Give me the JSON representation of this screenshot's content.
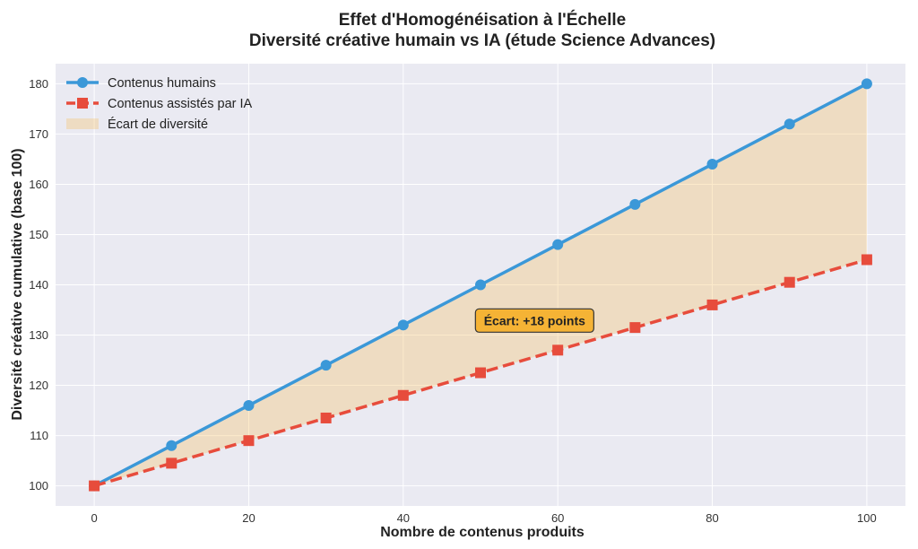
{
  "chart_data": {
    "type": "line",
    "title_line1": "Effet d'Homogénéisation à l'Échelle",
    "title_line2": "Diversité créative humain vs IA (étude Science Advances)",
    "xlabel": "Nombre de contenus produits",
    "ylabel": "Diversité créative cumulative (base 100)",
    "xlim": [
      -5,
      105
    ],
    "ylim": [
      96,
      184
    ],
    "x_ticks": [
      0,
      20,
      40,
      60,
      80,
      100
    ],
    "y_ticks": [
      100,
      110,
      120,
      130,
      140,
      150,
      160,
      170,
      180
    ],
    "grid": true,
    "legend_position": "top-left",
    "x": [
      0,
      10,
      20,
      30,
      40,
      50,
      60,
      70,
      80,
      90,
      100
    ],
    "series": [
      {
        "name": "Contenus humains",
        "values": [
          100,
          108,
          116,
          124,
          132,
          140,
          148,
          156,
          164,
          172,
          180
        ],
        "color": "#3b98d8",
        "marker": "circle",
        "style": "solid"
      },
      {
        "name": "Contenus assistés par IA",
        "values": [
          100,
          104.5,
          109,
          113.5,
          118,
          122.5,
          127,
          131.5,
          136,
          140.5,
          145
        ],
        "color": "#e74c3c",
        "marker": "square",
        "style": "dashed"
      }
    ],
    "fill_between": {
      "name": "Écart de diversité",
      "color": "#f5c26b"
    },
    "annotation": {
      "text": "Écart: +18 points",
      "x": 57,
      "y": 132,
      "color": "#f5b335"
    },
    "background_color": "#eaeaf2"
  }
}
